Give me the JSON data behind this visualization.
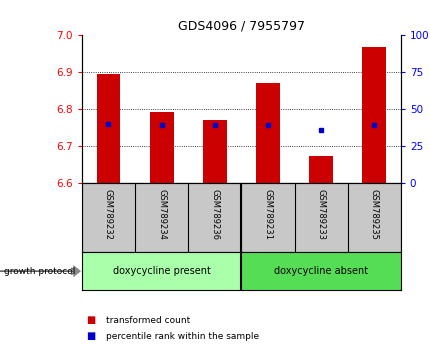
{
  "title": "GDS4096 / 7955797",
  "samples": [
    "GSM789232",
    "GSM789234",
    "GSM789236",
    "GSM789231",
    "GSM789233",
    "GSM789235"
  ],
  "bar_tops": [
    6.895,
    6.793,
    6.77,
    6.872,
    6.675,
    6.968
  ],
  "bar_bottom": 6.6,
  "percentile_values": [
    6.76,
    6.758,
    6.758,
    6.758,
    6.745,
    6.758
  ],
  "ylim": [
    6.6,
    7.0
  ],
  "yticks_left": [
    6.6,
    6.7,
    6.8,
    6.9,
    7.0
  ],
  "yticks_right": [
    0,
    25,
    50,
    75,
    100
  ],
  "bar_color": "#cc0000",
  "percentile_color": "#0000cc",
  "group1_label": "doxycycline present",
  "group2_label": "doxycycline absent",
  "group1_color": "#aaffaa",
  "group2_color": "#55dd55",
  "protocol_label": "growth protocol",
  "legend_red": "transformed count",
  "legend_blue": "percentile rank within the sample",
  "xlabel_bg": "#c8c8c8"
}
